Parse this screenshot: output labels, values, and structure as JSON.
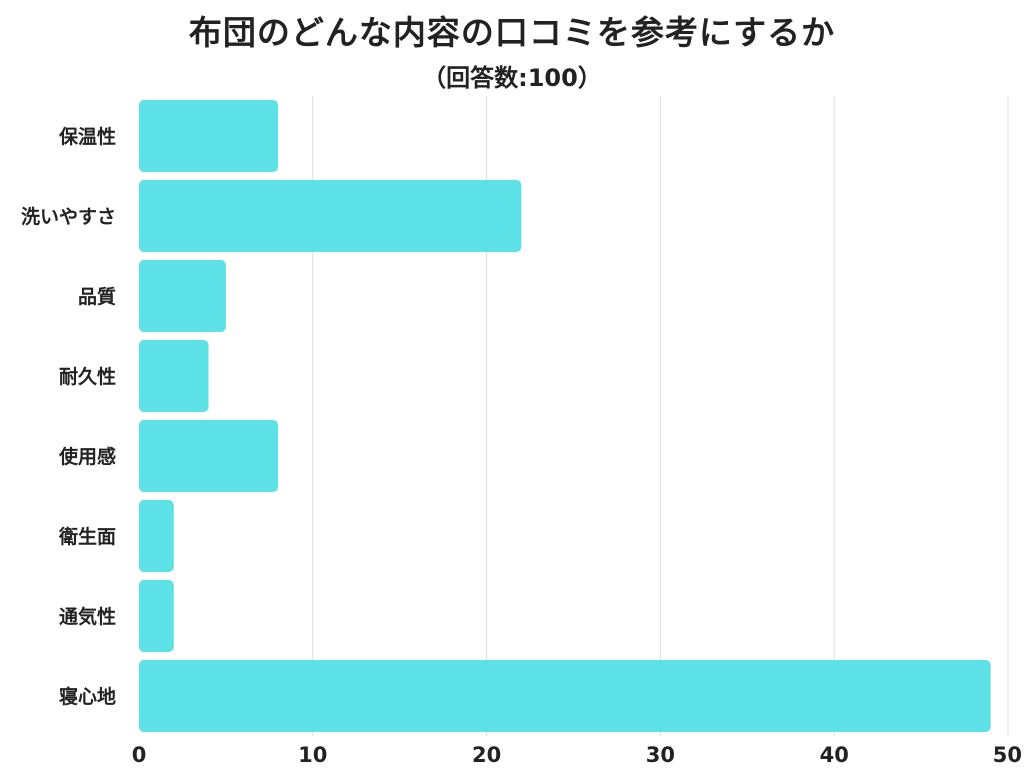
{
  "title": "布団のどんな内容の口コミを参考にするか",
  "subtitle": "（回答数:100）",
  "colors": {
    "bar": "#5ce1e6",
    "grid": "#dddddd",
    "text": "#222222"
  },
  "chart_data": {
    "type": "bar",
    "orientation": "horizontal",
    "categories": [
      "保温性",
      "洗いやすさ",
      "品質",
      "耐久性",
      "使用感",
      "衛生面",
      "通気性",
      "寝心地"
    ],
    "values": [
      8,
      22,
      5,
      4,
      8,
      2,
      2,
      49
    ],
    "xlim": [
      0,
      50
    ],
    "xticks": [
      0,
      10,
      20,
      30,
      40,
      50
    ],
    "grid": true
  }
}
